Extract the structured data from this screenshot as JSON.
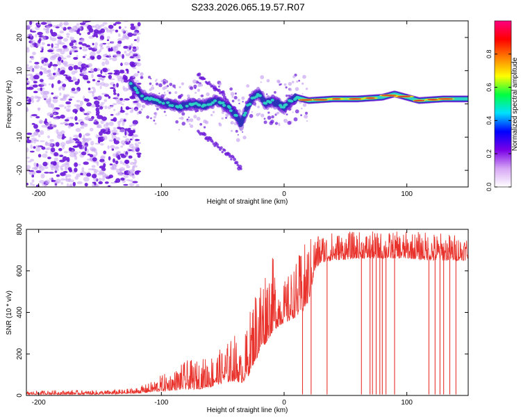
{
  "figure": {
    "title": "S233.2026.065.19.57.R07"
  },
  "colors": {
    "background": "#ffffff",
    "axis": "#000000",
    "snr_line": "#e8322b",
    "ridge": "#2fd3c4",
    "ridge_edge": "#2c32b8",
    "ridge_peak": "#d8362c",
    "speckle_dark": "#6a16d8",
    "speckle_light": "#c9a6f2"
  },
  "chart_data": [
    {
      "type": "heatmap",
      "name": "spectrogram",
      "title": "",
      "xlabel": "Height of straight line (km)",
      "ylabel": "Frequency (Hz)",
      "xlim": [
        -210,
        150
      ],
      "ylim": [
        -25,
        25
      ],
      "xticks": [
        -200,
        -100,
        0,
        100
      ],
      "yticks": [
        -20,
        -10,
        0,
        10,
        20
      ],
      "colorbar": {
        "label": "Normalized spectral amplitude",
        "range": [
          0,
          1
        ],
        "ticks": [
          "0.0",
          "0.2",
          "0.4",
          "0.6",
          "0.8"
        ],
        "stops": [
          "#ffffff",
          "#d6a6f5",
          "#7a00e6",
          "#0000ff",
          "#00e0ff",
          "#00ff40",
          "#ffff00",
          "#ff8000",
          "#ff0000",
          "#ff0080"
        ]
      },
      "noise_region_x": [
        -210,
        -118
      ],
      "main_ridge": {
        "x": [
          -125,
          -115,
          -105,
          -95,
          -85,
          -75,
          -65,
          -55,
          -45,
          -40,
          -35,
          -30,
          -25,
          -20,
          -15,
          -10,
          -5,
          0,
          5,
          10,
          20,
          40,
          60,
          80,
          90,
          100,
          110,
          130,
          150
        ],
        "y": [
          6,
          2,
          1,
          0,
          -1,
          0,
          -0.5,
          1,
          -1,
          -3,
          -6,
          -1,
          2,
          3,
          0,
          1,
          0,
          -1,
          1,
          2,
          1,
          1.5,
          1.5,
          2,
          3,
          2,
          1,
          1.5,
          1.5
        ]
      },
      "secondary_branch": {
        "x": [
          -70,
          -60,
          -50,
          -40,
          -35
        ],
        "y": [
          9,
          6,
          3,
          -2,
          -6
        ]
      },
      "lower_branch": {
        "x": [
          -70,
          -60,
          -50,
          -40,
          -35
        ],
        "y": [
          -8,
          -11,
          -14,
          -17,
          -20
        ]
      },
      "strong_segment_x": [
        10,
        150
      ]
    },
    {
      "type": "line",
      "name": "snr",
      "title": "",
      "xlabel": "Height of straight line (km)",
      "ylabel": "SNR (10 * v/v)",
      "xlim": [
        -210,
        150
      ],
      "ylim": [
        0,
        800
      ],
      "xticks": [
        -200,
        -100,
        0,
        100
      ],
      "yticks": [
        0,
        200,
        400,
        600,
        800
      ],
      "envelope": {
        "x": [
          -210,
          -190,
          -170,
          -150,
          -130,
          -120,
          -110,
          -100,
          -90,
          -80,
          -70,
          -60,
          -50,
          -40,
          -35,
          -30,
          -25,
          -20,
          -15,
          -10,
          -5,
          0,
          5,
          10,
          15,
          20,
          25,
          30,
          40,
          60,
          80,
          100,
          120,
          140,
          150
        ],
        "low": [
          5,
          5,
          5,
          5,
          8,
          10,
          15,
          20,
          25,
          30,
          30,
          40,
          60,
          70,
          60,
          80,
          150,
          200,
          250,
          300,
          330,
          350,
          360,
          380,
          400,
          450,
          600,
          640,
          650,
          660,
          660,
          660,
          650,
          650,
          650
        ],
        "high": [
          20,
          25,
          25,
          25,
          30,
          40,
          60,
          100,
          120,
          170,
          170,
          200,
          230,
          300,
          200,
          350,
          500,
          600,
          650,
          680,
          600,
          550,
          600,
          650,
          720,
          760,
          780,
          790,
          790,
          790,
          790,
          790,
          790,
          780,
          780
        ]
      },
      "dropouts_x": [
        15,
        22,
        35,
        63,
        70,
        72,
        75,
        78,
        80,
        83,
        90,
        118,
        123,
        127,
        130,
        135,
        140
      ]
    }
  ]
}
